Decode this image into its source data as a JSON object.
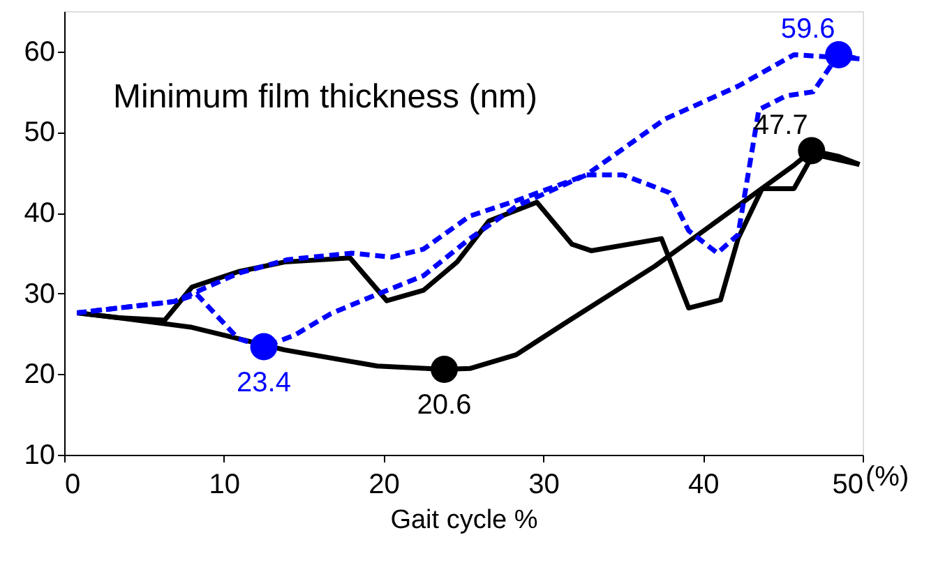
{
  "chart_data": {
    "type": "line",
    "title": "Minimum film thickness (nm)",
    "xlabel": "Gait cycle %",
    "annotations": [
      "(%)"
    ],
    "xlim": [
      0,
      50
    ],
    "ylim": [
      10,
      65
    ],
    "xticks": [
      0,
      10,
      20,
      30,
      40,
      50
    ],
    "yticks": [
      10,
      20,
      30,
      40,
      50,
      60
    ],
    "grid": false,
    "series": [
      {
        "type": "line",
        "color": "#000000",
        "line_style": "solid",
        "x": [
          0.8,
          3.4,
          6.3,
          8.0,
          10.9,
          13.8,
          17.9,
          20.2,
          22.5,
          24.6,
          26.6,
          29.6,
          31.8,
          33.0,
          37.4,
          39.1,
          41.1,
          42.2,
          43.7,
          45.7,
          47.0,
          47.5,
          49.8
        ],
        "values": [
          27.6,
          27.0,
          26.7,
          30.8,
          32.7,
          33.9,
          34.4,
          29.1,
          30.4,
          33.9,
          39.0,
          41.3,
          36.1,
          35.3,
          36.8,
          28.2,
          29.2,
          36.8,
          43.0,
          43.0,
          47.6,
          47.0,
          46.0
        ]
      },
      {
        "type": "line",
        "color": "#000000",
        "line_style": "solid",
        "x": [
          49.8,
          48.5,
          46.8,
          45.7,
          37.0,
          31.5,
          28.3,
          25.4,
          23.8,
          19.6,
          13.8,
          8.0,
          3.4,
          0.8
        ],
        "values": [
          46.0,
          47.0,
          47.7,
          45.9,
          33.4,
          26.5,
          22.4,
          20.7,
          20.6,
          21.0,
          23.0,
          25.8,
          27.0,
          27.6
        ]
      },
      {
        "type": "line",
        "color": "#0000ff",
        "line_style": "dashed",
        "x": [
          0.8,
          6.9,
          10.9,
          14.0,
          18.0,
          20.5,
          22.5,
          25.4,
          28.3,
          32.7,
          35.0,
          37.9,
          39.1,
          40.9,
          42.2,
          43.5,
          45.2,
          46.9,
          48.1,
          48.5,
          49.8
        ],
        "values": [
          27.6,
          29.0,
          32.5,
          34.2,
          35.0,
          34.5,
          35.5,
          39.6,
          41.5,
          44.7,
          44.7,
          42.5,
          37.8,
          35.0,
          37.3,
          52.8,
          54.5,
          55.0,
          58.5,
          59.6,
          59.1
        ]
      },
      {
        "type": "line",
        "color": "#0000ff",
        "line_style": "dashed",
        "x": [
          49.8,
          45.7,
          42.2,
          37.6,
          32.7,
          28.3,
          25.4,
          22.5,
          19.6,
          16.7,
          14.4,
          12.5,
          10.9,
          8.3,
          6.9,
          0.8
        ],
        "values": [
          59.1,
          59.6,
          55.7,
          51.6,
          44.7,
          40.8,
          36.8,
          32.2,
          29.9,
          27.5,
          24.8,
          23.4,
          24.4,
          29.9,
          29.0,
          27.6
        ]
      },
      {
        "type": "scatter",
        "color": "#000000",
        "marker": "circle",
        "x": [
          23.8,
          46.8
        ],
        "values": [
          20.6,
          47.7
        ],
        "value_labels": [
          "20.6",
          "47.7"
        ]
      },
      {
        "type": "scatter",
        "color": "#0000ff",
        "marker": "circle",
        "x": [
          12.5,
          48.5
        ],
        "values": [
          23.4,
          59.6
        ],
        "value_labels": [
          "23.4",
          "59.6"
        ]
      }
    ]
  }
}
